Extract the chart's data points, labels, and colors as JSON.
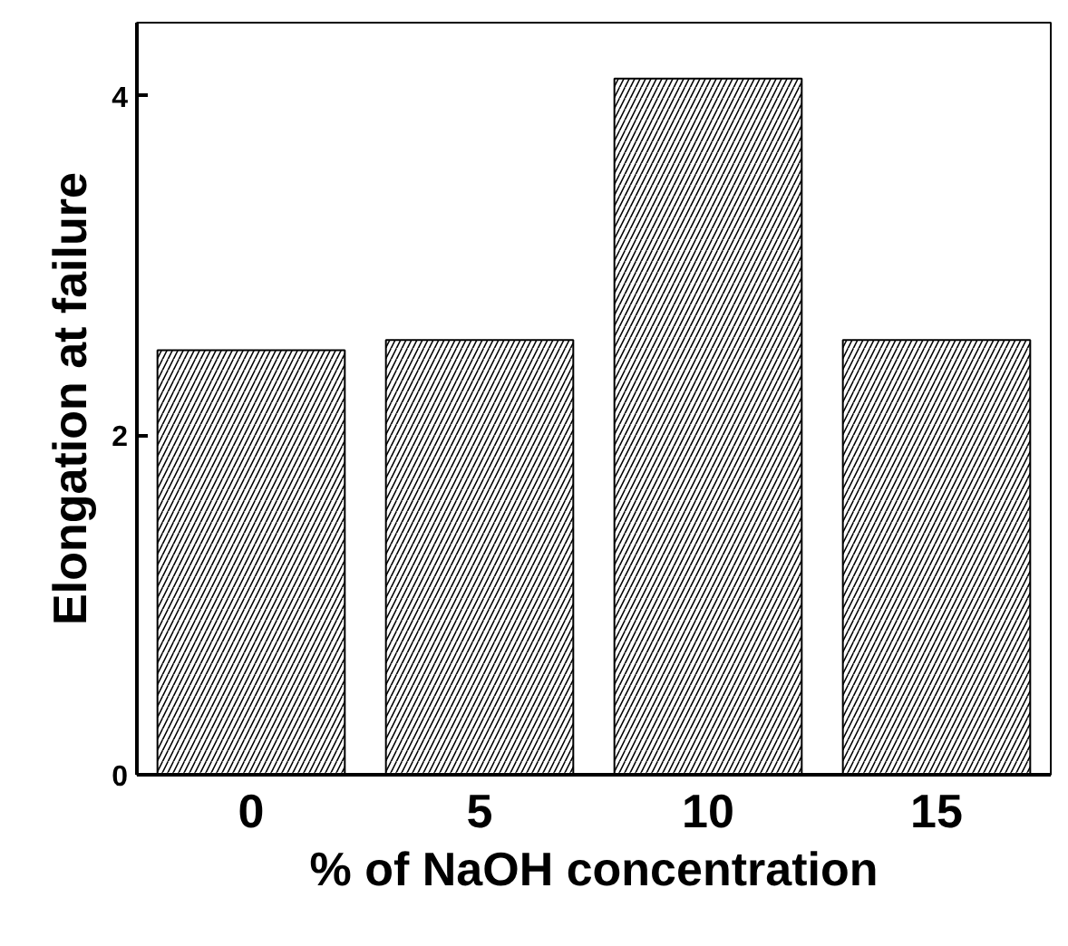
{
  "chart_data": {
    "type": "bar",
    "xlabel": "% of NaOH concentration",
    "ylabel": "Elongation at failure",
    "categories": [
      "0",
      "5",
      "10",
      "15"
    ],
    "values": [
      2.5,
      2.56,
      4.1,
      2.56
    ],
    "color": "#000000",
    "ylim": [
      0,
      4.43
    ],
    "yticks": [
      0,
      2,
      4
    ],
    "grid": false
  }
}
